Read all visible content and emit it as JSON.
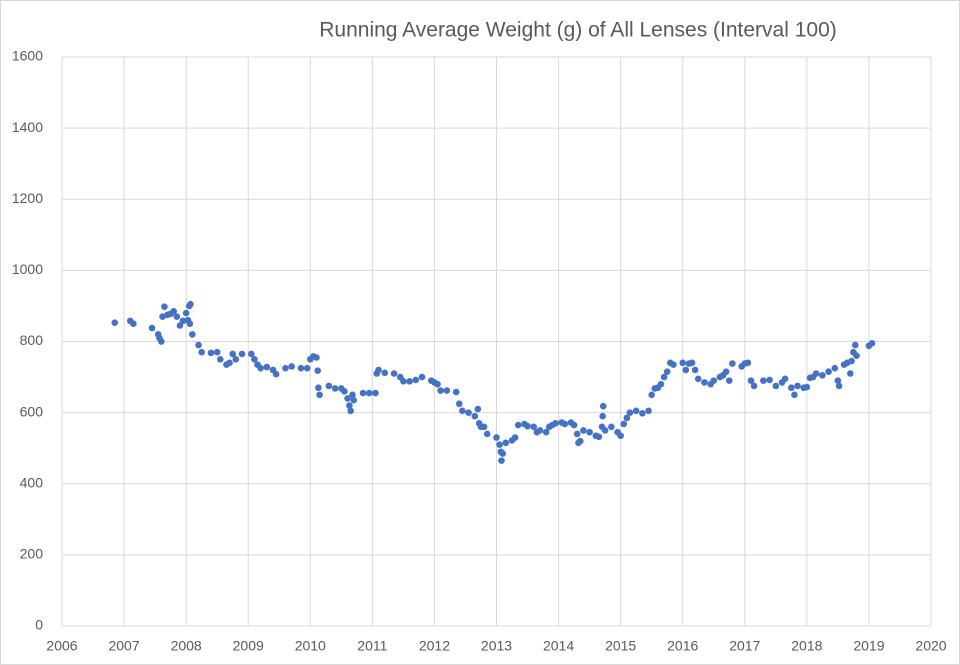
{
  "chart_data": {
    "type": "scatter",
    "title": "Running Average Weight (g) of All Lenses (Interval 100)",
    "color": "#4472c4",
    "grid": true,
    "xlim": [
      2006,
      2020
    ],
    "xticks": [
      2006,
      2007,
      2008,
      2009,
      2010,
      2011,
      2012,
      2013,
      2014,
      2015,
      2016,
      2017,
      2018,
      2019,
      2020
    ],
    "ylim": [
      0,
      1600
    ],
    "yticks": [
      0,
      200,
      400,
      600,
      800,
      1000,
      1200,
      1400,
      1600
    ],
    "x": [
      2006.85,
      2007.1,
      2007.15,
      2007.45,
      2007.55,
      2007.57,
      2007.6,
      2007.62,
      2007.65,
      2007.7,
      2007.75,
      2007.8,
      2007.85,
      2007.9,
      2007.95,
      2008.0,
      2008.03,
      2008.05,
      2008.06,
      2008.07,
      2008.1,
      2008.2,
      2008.25,
      2008.4,
      2008.5,
      2008.55,
      2008.65,
      2008.7,
      2008.75,
      2008.8,
      2008.9,
      2009.05,
      2009.1,
      2009.15,
      2009.2,
      2009.3,
      2009.4,
      2009.45,
      2009.6,
      2009.7,
      2009.85,
      2009.95,
      2010.0,
      2010.05,
      2010.1,
      2010.12,
      2010.13,
      2010.15,
      2010.3,
      2010.4,
      2010.5,
      2010.55,
      2010.6,
      2010.63,
      2010.65,
      2010.68,
      2010.7,
      2010.85,
      2010.95,
      2011.05,
      2011.07,
      2011.1,
      2011.2,
      2011.35,
      2011.45,
      2011.5,
      2011.6,
      2011.7,
      2011.8,
      2011.95,
      2012.0,
      2012.05,
      2012.1,
      2012.2,
      2012.35,
      2012.4,
      2012.45,
      2012.55,
      2012.65,
      2012.7,
      2012.72,
      2012.75,
      2012.8,
      2012.85,
      2013.0,
      2013.05,
      2013.07,
      2013.08,
      2013.1,
      2013.15,
      2013.25,
      2013.3,
      2013.35,
      2013.45,
      2013.5,
      2013.6,
      2013.65,
      2013.7,
      2013.8,
      2013.85,
      2013.9,
      2013.95,
      2014.05,
      2014.1,
      2014.2,
      2014.25,
      2014.3,
      2014.32,
      2014.35,
      2014.4,
      2014.5,
      2014.6,
      2014.65,
      2014.7,
      2014.71,
      2014.72,
      2014.75,
      2014.85,
      2014.95,
      2015.0,
      2015.05,
      2015.1,
      2015.15,
      2015.25,
      2015.35,
      2015.45,
      2015.5,
      2015.55,
      2015.6,
      2015.65,
      2015.7,
      2015.75,
      2015.8,
      2015.85,
      2016.0,
      2016.05,
      2016.1,
      2016.15,
      2016.2,
      2016.25,
      2016.35,
      2016.45,
      2016.5,
      2016.6,
      2016.65,
      2016.7,
      2016.75,
      2016.8,
      2016.95,
      2017.0,
      2017.05,
      2017.1,
      2017.15,
      2017.3,
      2017.4,
      2017.5,
      2017.6,
      2017.65,
      2017.75,
      2017.8,
      2017.85,
      2017.95,
      2018.0,
      2018.05,
      2018.1,
      2018.15,
      2018.25,
      2018.35,
      2018.45,
      2018.5,
      2018.52,
      2018.6,
      2018.65,
      2018.7,
      2018.72,
      2018.75,
      2018.78,
      2018.8,
      2019.0,
      2019.05
    ],
    "values": [
      853,
      858,
      850,
      838,
      820,
      810,
      800,
      870,
      898,
      875,
      878,
      885,
      870,
      845,
      858,
      880,
      860,
      900,
      850,
      905,
      820,
      790,
      770,
      768,
      770,
      750,
      735,
      740,
      765,
      750,
      765,
      765,
      750,
      735,
      725,
      728,
      720,
      708,
      725,
      730,
      725,
      725,
      750,
      758,
      755,
      718,
      670,
      650,
      675,
      668,
      668,
      660,
      640,
      620,
      605,
      650,
      635,
      655,
      655,
      655,
      710,
      720,
      712,
      710,
      700,
      688,
      688,
      692,
      700,
      690,
      685,
      680,
      662,
      662,
      658,
      625,
      605,
      600,
      590,
      610,
      570,
      560,
      560,
      540,
      530,
      510,
      490,
      465,
      485,
      515,
      522,
      530,
      565,
      568,
      562,
      560,
      545,
      550,
      545,
      560,
      565,
      570,
      572,
      568,
      572,
      565,
      540,
      515,
      520,
      550,
      545,
      535,
      532,
      560,
      590,
      618,
      550,
      560,
      545,
      535,
      568,
      585,
      600,
      605,
      598,
      605,
      650,
      668,
      670,
      680,
      700,
      715,
      740,
      735,
      740,
      720,
      738,
      740,
      720,
      695,
      685,
      680,
      690,
      700,
      705,
      715,
      690,
      738,
      730,
      738,
      740,
      690,
      675,
      690,
      692,
      675,
      685,
      695,
      670,
      650,
      675,
      670,
      672,
      698,
      700,
      710,
      705,
      715,
      725,
      690,
      675,
      735,
      740,
      710,
      745,
      770,
      790,
      760,
      788,
      795
    ]
  }
}
